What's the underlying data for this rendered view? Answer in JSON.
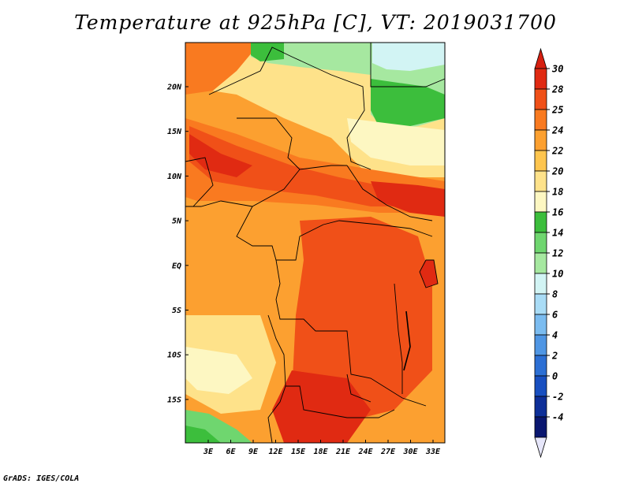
{
  "title": "Temperature at 925hPa [C], VT: 2019031700",
  "credit": "GrADS: IGES/COLA",
  "lat_labels": [
    "20N",
    "15N",
    "10N",
    "5N",
    "EQ",
    "5S",
    "10S",
    "15S"
  ],
  "lon_labels": [
    "3E",
    "6E",
    "9E",
    "12E",
    "15E",
    "18E",
    "21E",
    "24E",
    "27E",
    "30E",
    "33E"
  ],
  "colorbar": {
    "labels": [
      "30",
      "28",
      "25",
      "24",
      "22",
      "20",
      "18",
      "16",
      "14",
      "12",
      "10",
      "8",
      "6",
      "4",
      "2",
      "0",
      "-2",
      "-4"
    ],
    "colors": [
      "#e02a12",
      "#f05018",
      "#f97a20",
      "#fca030",
      "#fec54e",
      "#fee28a",
      "#fdf7c2",
      "#3cbe3c",
      "#6fd66f",
      "#a6e8a0",
      "#d2f4f4",
      "#a9dcf6",
      "#7bbcf0",
      "#4f96e4",
      "#2c6fd4",
      "#184fc0",
      "#0e2f98",
      "#0a1770"
    ],
    "top_color": "#d62010",
    "bottom_color": "#e6e6fa"
  },
  "map_colors": {
    "hot": "#e02a12",
    "warm": "#f05018",
    "orange": "#f97a20",
    "light_orange": "#fca030",
    "amber": "#fec54e",
    "pale": "#fee28a",
    "cream": "#fdf7c2",
    "green": "#3cbe3c",
    "light_green": "#6fd66f",
    "pale_green": "#a6e8a0",
    "cyan": "#d2f4f4"
  }
}
